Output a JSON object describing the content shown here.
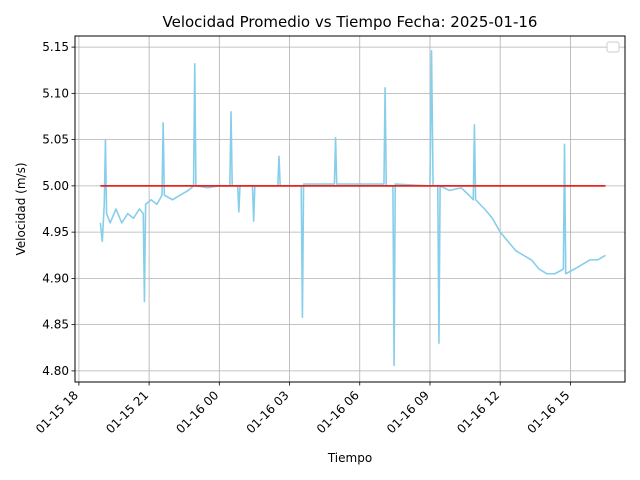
{
  "chart_data": {
    "type": "line",
    "title": "Velocidad Promedio vs Tiempo Fecha: 2025-01-16",
    "xlabel": "Tiempo",
    "ylabel": "Velocidad (m/s)",
    "xlim": [
      "2025-01-15 17:50",
      "2025-01-16 17:20"
    ],
    "ylim": [
      4.788,
      5.162
    ],
    "x_ticks": [
      {
        "t": "2025-01-15 18:00",
        "label": "01-15 18"
      },
      {
        "t": "2025-01-15 21:00",
        "label": "01-15 21"
      },
      {
        "t": "2025-01-16 00:00",
        "label": "01-16 00"
      },
      {
        "t": "2025-01-16 03:00",
        "label": "01-16 03"
      },
      {
        "t": "2025-01-16 06:00",
        "label": "01-16 06"
      },
      {
        "t": "2025-01-16 09:00",
        "label": "01-16 09"
      },
      {
        "t": "2025-01-16 12:00",
        "label": "01-16 12"
      },
      {
        "t": "2025-01-16 15:00",
        "label": "01-16 15"
      }
    ],
    "y_ticks": [
      4.8,
      4.85,
      4.9,
      4.95,
      5.0,
      5.05,
      5.1,
      5.15
    ],
    "grid": true,
    "legend": "top-right",
    "series": [
      {
        "color": "#87CEEB",
        "points": [
          [
            "2025-01-15 18:55",
            4.96
          ],
          [
            "2025-01-15 19:00",
            4.94
          ],
          [
            "2025-01-15 19:05",
            4.98
          ],
          [
            "2025-01-15 19:08",
            5.05
          ],
          [
            "2025-01-15 19:11",
            4.97
          ],
          [
            "2025-01-15 19:20",
            4.96
          ],
          [
            "2025-01-15 19:35",
            4.975
          ],
          [
            "2025-01-15 19:50",
            4.96
          ],
          [
            "2025-01-15 20:05",
            4.97
          ],
          [
            "2025-01-15 20:20",
            4.965
          ],
          [
            "2025-01-15 20:35",
            4.975
          ],
          [
            "2025-01-15 20:45",
            4.97
          ],
          [
            "2025-01-15 20:48",
            4.875
          ],
          [
            "2025-01-15 20:51",
            4.98
          ],
          [
            "2025-01-15 21:05",
            4.985
          ],
          [
            "2025-01-15 21:20",
            4.98
          ],
          [
            "2025-01-15 21:33",
            4.99
          ],
          [
            "2025-01-15 21:36",
            5.068
          ],
          [
            "2025-01-15 21:39",
            4.99
          ],
          [
            "2025-01-15 22:00",
            4.985
          ],
          [
            "2025-01-15 22:20",
            4.99
          ],
          [
            "2025-01-15 22:40",
            4.995
          ],
          [
            "2025-01-15 22:54",
            5.0
          ],
          [
            "2025-01-15 22:57",
            5.132
          ],
          [
            "2025-01-15 23:00",
            5.0
          ],
          [
            "2025-01-15 23:30",
            4.998
          ],
          [
            "2025-01-16 00:00",
            5.0
          ],
          [
            "2025-01-16 00:27",
            5.0
          ],
          [
            "2025-01-16 00:30",
            5.08
          ],
          [
            "2025-01-16 00:33",
            5.0
          ],
          [
            "2025-01-16 00:47",
            5.0
          ],
          [
            "2025-01-16 00:50",
            4.972
          ],
          [
            "2025-01-16 00:53",
            5.0
          ],
          [
            "2025-01-16 01:25",
            5.0
          ],
          [
            "2025-01-16 01:28",
            4.962
          ],
          [
            "2025-01-16 01:31",
            5.0
          ],
          [
            "2025-01-16 02:30",
            5.0
          ],
          [
            "2025-01-16 02:33",
            5.032
          ],
          [
            "2025-01-16 02:36",
            5.0
          ],
          [
            "2025-01-16 03:30",
            5.0
          ],
          [
            "2025-01-16 03:33",
            4.858
          ],
          [
            "2025-01-16 03:36",
            5.002
          ],
          [
            "2025-01-16 04:55",
            5.002
          ],
          [
            "2025-01-16 04:58",
            5.052
          ],
          [
            "2025-01-16 05:01",
            5.002
          ],
          [
            "2025-01-16 07:02",
            5.002
          ],
          [
            "2025-01-16 07:05",
            5.106
          ],
          [
            "2025-01-16 07:08",
            5.0
          ],
          [
            "2025-01-16 07:25",
            5.0
          ],
          [
            "2025-01-16 07:28",
            4.806
          ],
          [
            "2025-01-16 07:31",
            5.002
          ],
          [
            "2025-01-16 09:00",
            5.0
          ],
          [
            "2025-01-16 09:04",
            5.146
          ],
          [
            "2025-01-16 09:08",
            5.0
          ],
          [
            "2025-01-16 09:20",
            5.0
          ],
          [
            "2025-01-16 09:23",
            4.83
          ],
          [
            "2025-01-16 09:26",
            5.0
          ],
          [
            "2025-01-16 09:50",
            4.995
          ],
          [
            "2025-01-16 10:20",
            4.998
          ],
          [
            "2025-01-16 10:40",
            4.99
          ],
          [
            "2025-01-16 10:51",
            4.985
          ],
          [
            "2025-01-16 10:54",
            5.066
          ],
          [
            "2025-01-16 10:57",
            4.985
          ],
          [
            "2025-01-16 11:20",
            4.975
          ],
          [
            "2025-01-16 11:40",
            4.965
          ],
          [
            "2025-01-16 12:00",
            4.95
          ],
          [
            "2025-01-16 12:20",
            4.94
          ],
          [
            "2025-01-16 12:40",
            4.93
          ],
          [
            "2025-01-16 13:00",
            4.925
          ],
          [
            "2025-01-16 13:20",
            4.92
          ],
          [
            "2025-01-16 13:40",
            4.91
          ],
          [
            "2025-01-16 14:00",
            4.905
          ],
          [
            "2025-01-16 14:20",
            4.905
          ],
          [
            "2025-01-16 14:42",
            4.91
          ],
          [
            "2025-01-16 14:45",
            5.045
          ],
          [
            "2025-01-16 14:48",
            4.905
          ],
          [
            "2025-01-16 15:10",
            4.91
          ],
          [
            "2025-01-16 15:30",
            4.915
          ],
          [
            "2025-01-16 15:50",
            4.92
          ],
          [
            "2025-01-16 16:10",
            4.92
          ],
          [
            "2025-01-16 16:30",
            4.925
          ]
        ]
      },
      {
        "color": "#e8231d",
        "points": [
          [
            "2025-01-15 18:55",
            5.0
          ],
          [
            "2025-01-16 16:30",
            5.0
          ]
        ]
      }
    ]
  }
}
